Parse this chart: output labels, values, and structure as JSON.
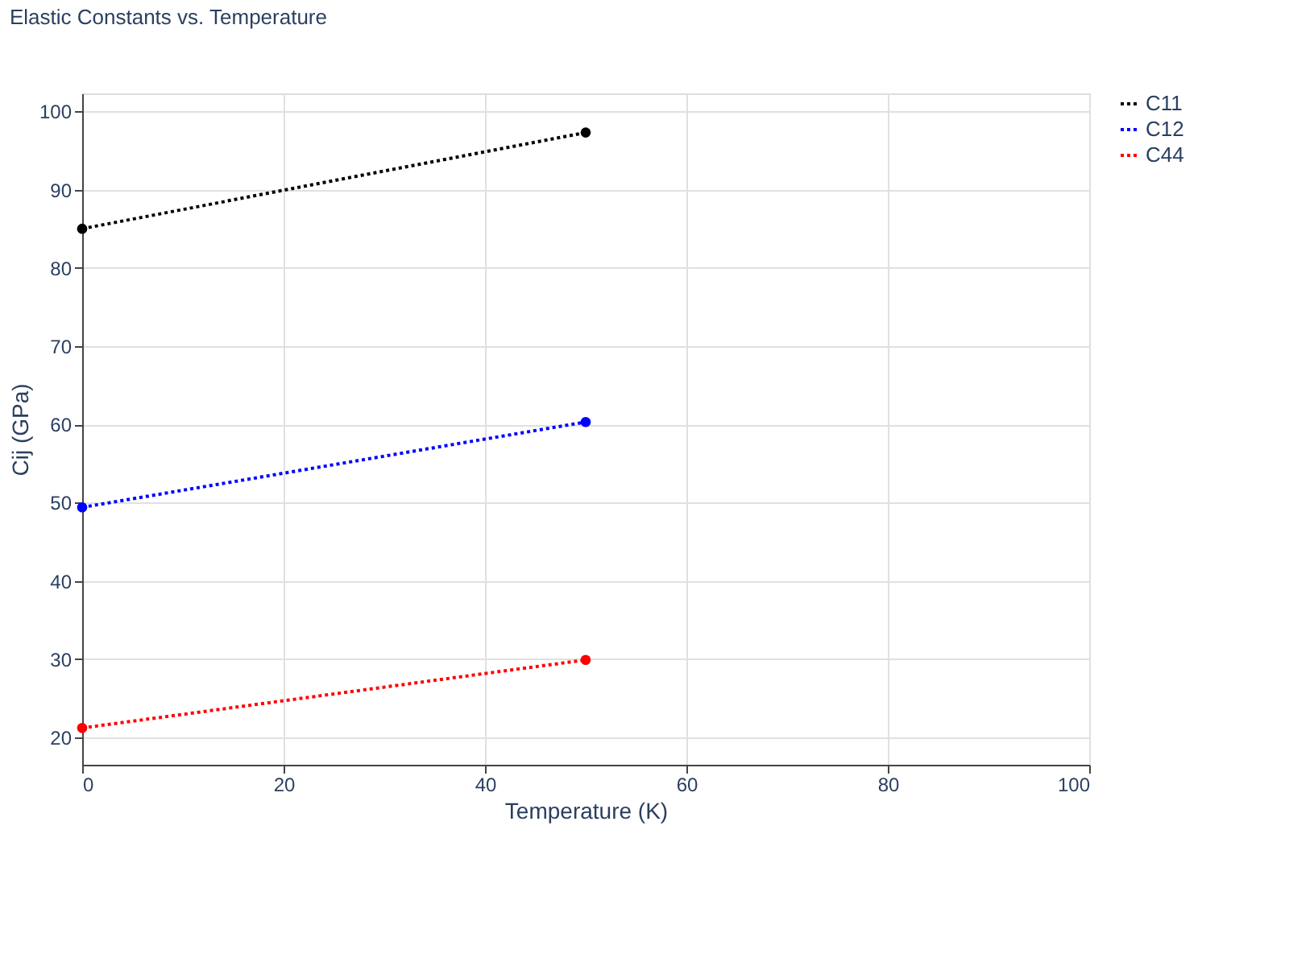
{
  "chart_data": {
    "type": "line",
    "title": "Elastic Constants vs. Temperature",
    "xlabel": "Temperature (K)",
    "ylabel": "Cij (GPa)",
    "x": [
      0,
      50
    ],
    "series": [
      {
        "name": "C11",
        "color": "#000000",
        "values": [
          85.0,
          97.3
        ]
      },
      {
        "name": "C12",
        "color": "#0000ff",
        "values": [
          49.4,
          60.3
        ]
      },
      {
        "name": "C44",
        "color": "#ff0000",
        "values": [
          21.2,
          29.9
        ]
      }
    ],
    "xlim": [
      0,
      100
    ],
    "xticks": [
      0,
      20,
      40,
      60,
      80,
      100
    ],
    "ylim": [
      16.5,
      102.3
    ],
    "yticks": [
      20,
      30,
      40,
      50,
      60,
      70,
      80,
      90,
      100
    ],
    "grid": true,
    "legend": "top right",
    "marker": "circle",
    "line_style": "dotted"
  }
}
